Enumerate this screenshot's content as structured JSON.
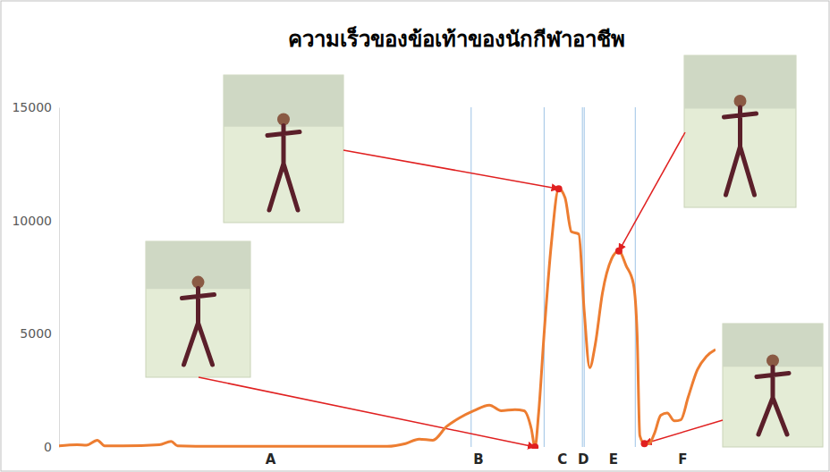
{
  "chart_data": {
    "type": "line",
    "title": "ความเร็วของข้อเท้าของนักกีฬาอาชีพ",
    "x": [
      0,
      5,
      7.5,
      10.5,
      12.5,
      17.5,
      27.5,
      30.75,
      32.5,
      42.5,
      55,
      67.5,
      80,
      90,
      95,
      98.75,
      102.5,
      106.25,
      110,
      113.75,
      118,
      121.25,
      125,
      127.5,
      129.5,
      130.5,
      131.5,
      133,
      135,
      137,
      138.75,
      140.5,
      142.5,
      144,
      145.5,
      147,
      149,
      151.5,
      153.5,
      155.5,
      157.5,
      158.5,
      159.25,
      160.5,
      161.75,
      163.25,
      165,
      166.75,
      168.75,
      170.5,
      172.5,
      175,
      177.5,
      180
    ],
    "series": [
      {
        "name": "ความเร็วของข้อเท้า",
        "color": "#ed7d31",
        "values": [
          50,
          100,
          80,
          300,
          50,
          50,
          100,
          250,
          50,
          30,
          30,
          30,
          30,
          30,
          150,
          350,
          300,
          900,
          1300,
          1600,
          1850,
          1600,
          1650,
          1600,
          800,
          0,
          1500,
          5000,
          9000,
          11400,
          11000,
          9500,
          9400,
          6000,
          3500,
          4500,
          6800,
          8300,
          8650,
          8000,
          7200,
          5000,
          500,
          150,
          150,
          600,
          1400,
          1500,
          1150,
          1200,
          2200,
          3400,
          4000,
          4300
        ]
      }
    ],
    "highlights": [
      130.5,
      137,
      153.5,
      160.5
    ],
    "phase_bounds": [
      113,
      133,
      143.5,
      144,
      158
    ],
    "phases": [
      {
        "label": "A",
        "x": 58
      },
      {
        "label": "B",
        "x": 115
      },
      {
        "label": "C",
        "x": 138
      },
      {
        "label": "D",
        "x": 143.75
      },
      {
        "label": "E",
        "x": 152
      },
      {
        "label": "F",
        "x": 171
      }
    ],
    "xlim": [
      0,
      180
    ],
    "ylim": [
      0,
      15000
    ],
    "yticks": [
      0,
      5000,
      10000,
      15000
    ],
    "tick_labels": "y",
    "grid": false,
    "marker": "none"
  }
}
